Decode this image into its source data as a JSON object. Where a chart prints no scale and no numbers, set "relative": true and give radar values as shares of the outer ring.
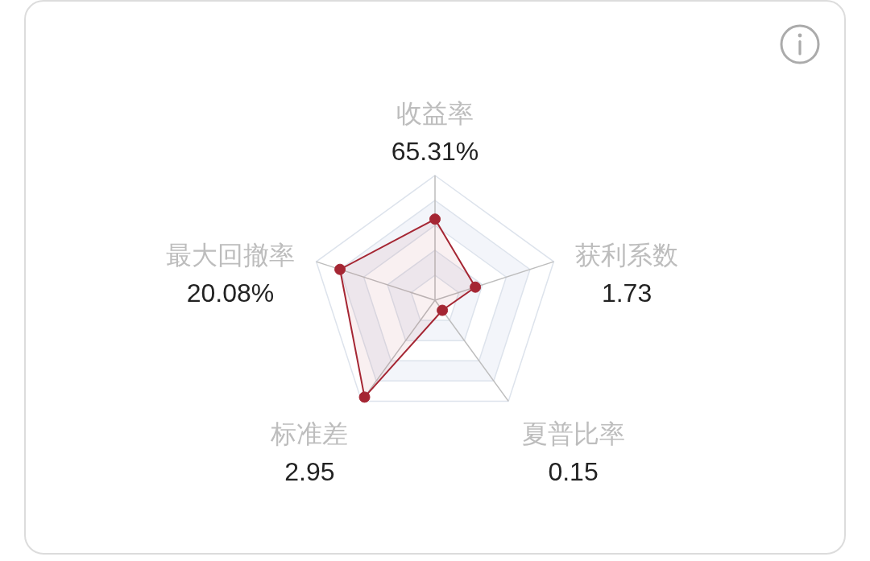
{
  "chart_data": {
    "type": "radar",
    "categories": [
      "收益率",
      "获利系数",
      "夏普比率",
      "标准差",
      "最大回撤率"
    ],
    "relative": true,
    "values": [
      0.65,
      0.34,
      0.1,
      0.96,
      0.8
    ],
    "color": "#a52633",
    "annotations": [
      "65.31%",
      "1.73",
      "0.15",
      "2.95",
      "20.08%"
    ],
    "grid": true,
    "marker": "circle"
  }
}
